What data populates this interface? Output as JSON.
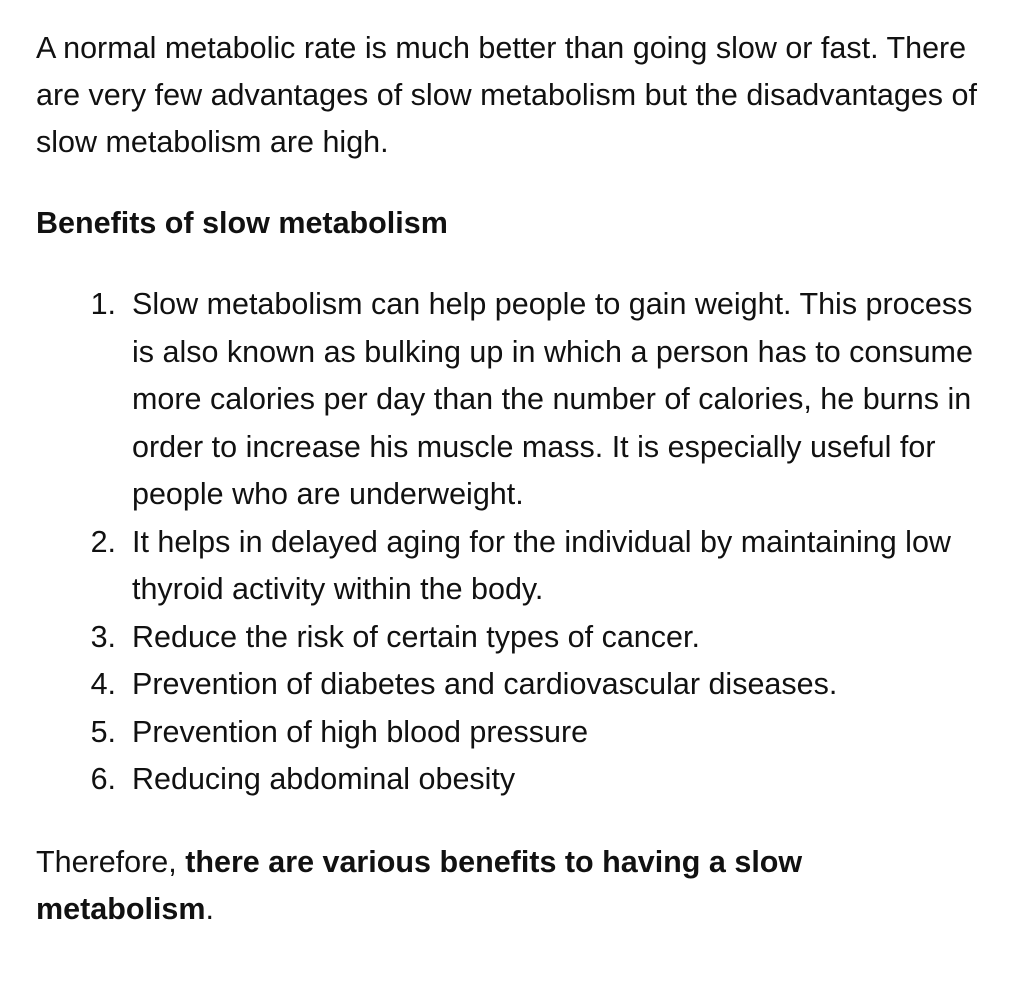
{
  "intro": {
    "text": "A normal metabolic rate is much better than going slow or fast. There are very few advantages of slow metabolism but the disadvantages of slow metabolism are high."
  },
  "section": {
    "heading": "Benefits of slow metabolism"
  },
  "benefits": [
    {
      "number": "1.",
      "text": "Slow metabolism can help people to gain weight. This process is also known as bulking up in which a person has to consume more calories per day than the number of calories, he burns in order to increase his muscle mass. It is especially useful for people who are underweight."
    },
    {
      "number": "2.",
      "text": "It helps in delayed aging for the individual by maintaining low thyroid activity within the body."
    },
    {
      "number": "3.",
      "text": "Reduce the risk of certain types of cancer."
    },
    {
      "number": "4.",
      "text": "Prevention of diabetes and cardiovascular diseases."
    },
    {
      "number": "5.",
      "text": "Prevention of high blood pressure"
    },
    {
      "number": "6.",
      "text": "Reducing abdominal obesity"
    }
  ],
  "conclusion": {
    "lead": "Therefore, ",
    "bold": "there are various benefits to having a slow metabolism",
    "end": "."
  }
}
